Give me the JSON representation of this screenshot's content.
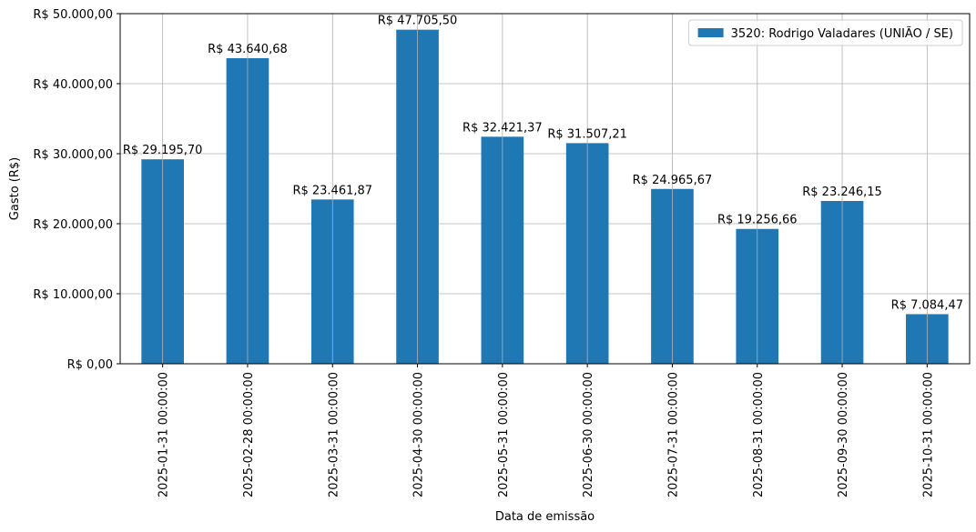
{
  "chart_data": {
    "type": "bar",
    "categories": [
      "2025-01-31 00:00:00",
      "2025-02-28 00:00:00",
      "2025-03-31 00:00:00",
      "2025-04-30 00:00:00",
      "2025-05-31 00:00:00",
      "2025-06-30 00:00:00",
      "2025-07-31 00:00:00",
      "2025-08-31 00:00:00",
      "2025-09-30 00:00:00",
      "2025-10-31 00:00:00"
    ],
    "series": [
      {
        "name": "3520: Rodrigo Valadares (UNIÃO / SE)",
        "color": "#1f77b4",
        "values": [
          29195.7,
          43640.68,
          23461.87,
          47705.5,
          32421.37,
          31507.21,
          24965.67,
          19256.66,
          23246.15,
          7084.47
        ],
        "labels": [
          "R$ 29.195,70",
          "R$ 43.640,68",
          "R$ 23.461,87",
          "R$ 47.705,50",
          "R$ 32.421,37",
          "R$ 31.507,21",
          "R$ 24.965,67",
          "R$ 19.256,66",
          "R$ 23.246,15",
          "R$ 7.084,47"
        ]
      }
    ],
    "xlabel": "Data de emissão",
    "ylabel": "Gasto (R$)",
    "ylim": [
      0,
      50000
    ],
    "yticks": [
      0,
      10000,
      20000,
      30000,
      40000,
      50000
    ],
    "ytick_labels": [
      "R$ 0,00",
      "R$ 10.000,00",
      "R$ 20.000,00",
      "R$ 30.000,00",
      "R$ 40.000,00",
      "R$ 50.000,00"
    ],
    "grid": true,
    "legend_position": "top-right"
  }
}
